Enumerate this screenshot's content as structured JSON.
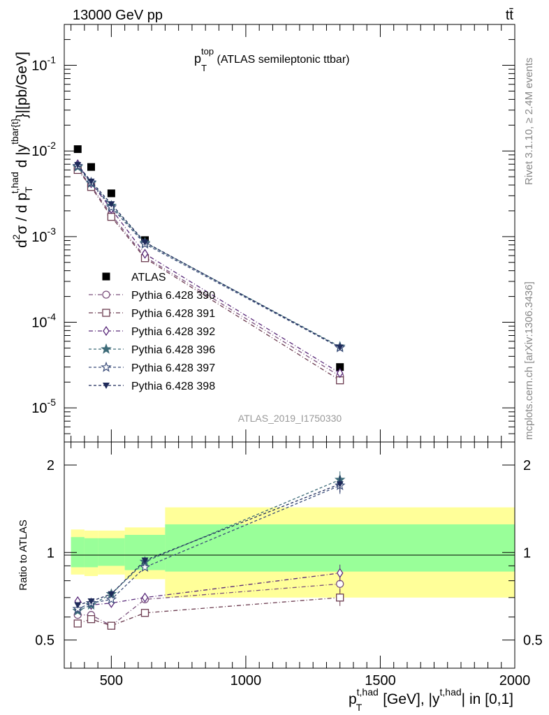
{
  "header": {
    "left": "13000 GeV pp",
    "right": "tt̄"
  },
  "side_labels": {
    "rivet": "Rivet 3.1.10, ≥ 2.4M events",
    "mcplots": "mcplots.cern.ch [arXiv:1306.3436]"
  },
  "main_panel": {
    "title_main": "p",
    "title_sup": "top",
    "title_sub": "T",
    "title_rest": " (ATLAS semileptonic ttbar)",
    "ylabel": "d²σ / d p_T^{t,had} d |y^{tbar{t}}|[pb/GeV]",
    "ylabel_parts": {
      "d1": "d",
      "sup2": "2",
      "sigma": "σ / d p",
      "subT": "T",
      "supthad": "t,had",
      "mid": " d |y",
      "suptbar": "tbar{t}",
      "end": "}|[pb/GeV]"
    },
    "watermark": "ATLAS_2019_I1750330"
  },
  "ratio_panel": {
    "ylabel": "Ratio to ATLAS"
  },
  "xaxis": {
    "label_p": "p",
    "label_sup": "t,had",
    "label_sub": "T",
    "label_mid": " [GeV], |y",
    "label_sup2": "t,had",
    "label_end": "| in [0,1]"
  },
  "chart_data": [
    {
      "type": "scatter",
      "panel": "main",
      "title": "p_T^top (ATLAS semileptonic ttbar)",
      "xlabel": "p_T^{t,had} [GeV], |y^{t,had}| in [0,1]",
      "ylabel": "d²σ / d p_T^{t,had} d |y^{tbar{t}}|[pb/GeV]",
      "yscale": "log",
      "xlim": [
        325,
        2000
      ],
      "ylim": [
        4e-06,
        0.3
      ],
      "x_ticks": [
        500,
        1000,
        1500,
        2000
      ],
      "y_ticks": [
        {
          "value": 0.1,
          "base": "10",
          "exp": "-1"
        },
        {
          "value": 0.01,
          "base": "10",
          "exp": "-2"
        },
        {
          "value": 0.001,
          "base": "10",
          "exp": "-3"
        },
        {
          "value": 0.0001,
          "base": "10",
          "exp": "-4"
        },
        {
          "value": 1e-05,
          "base": "10",
          "exp": "-5"
        }
      ],
      "legend_position": "middle-left",
      "x": [
        375,
        425,
        500,
        625,
        1350
      ],
      "series": [
        {
          "name": "ATLAS",
          "marker": "filled-square",
          "color": "#000000",
          "dash": "",
          "values": [
            0.0105,
            0.0065,
            0.0032,
            0.00091,
            3e-05
          ]
        },
        {
          "name": "Pythia 6.428 390",
          "marker": "open-circle",
          "color": "#7a4f7c",
          "dash": "6,3,1,3",
          "values": [
            0.0062,
            0.0039,
            0.0018,
            0.00058,
            2.35e-05
          ]
        },
        {
          "name": "Pythia 6.428 391",
          "marker": "open-square",
          "color": "#6b3b4f",
          "dash": "6,3,1,3",
          "values": [
            0.006,
            0.0038,
            0.0017,
            0.00056,
            2.1e-05
          ]
        },
        {
          "name": "Pythia 6.428 392",
          "marker": "open-diamond",
          "color": "#5a2a7a",
          "dash": "6,3,1,3",
          "values": [
            0.007,
            0.0042,
            0.0021,
            0.00063,
            2.55e-05
          ]
        },
        {
          "name": "Pythia 6.428 396",
          "marker": "filled-star",
          "color": "#3d6b78",
          "dash": "4,3",
          "values": [
            0.0065,
            0.0042,
            0.0023,
            0.00085,
            5.2e-05
          ]
        },
        {
          "name": "Pythia 6.428 397",
          "marker": "open-star",
          "color": "#3b4d7a",
          "dash": "4,3",
          "values": [
            0.0067,
            0.0043,
            0.0022,
            0.00082,
            5.05e-05
          ]
        },
        {
          "name": "Pythia 6.428 398",
          "marker": "filled-triangle-down",
          "color": "#1e2a5a",
          "dash": "4,3",
          "values": [
            0.0069,
            0.0044,
            0.0024,
            0.00086,
            5.1e-05
          ]
        }
      ]
    },
    {
      "type": "scatter",
      "panel": "ratio",
      "ylabel": "Ratio to ATLAS",
      "yscale": "log",
      "xlim": [
        325,
        2000
      ],
      "ylim": [
        0.4,
        2.4
      ],
      "y_ticks": [
        {
          "value": 0.5,
          "label": "0.5"
        },
        {
          "value": 1,
          "label": "1"
        },
        {
          "value": 2,
          "label": "2"
        }
      ],
      "uncertainty_bands": {
        "bins": [
          [
            350,
            400
          ],
          [
            400,
            450
          ],
          [
            450,
            550
          ],
          [
            550,
            700
          ],
          [
            700,
            2000
          ]
        ],
        "inner": [
          [
            0.89,
            1.13
          ],
          [
            0.89,
            1.12
          ],
          [
            0.9,
            1.12
          ],
          [
            0.87,
            1.15
          ],
          [
            0.86,
            1.25
          ]
        ],
        "outer": [
          [
            0.84,
            1.2
          ],
          [
            0.83,
            1.19
          ],
          [
            0.84,
            1.19
          ],
          [
            0.81,
            1.22
          ],
          [
            0.7,
            1.43
          ]
        ]
      },
      "x": [
        375,
        425,
        500,
        625,
        1350
      ],
      "series": [
        {
          "name": "Pythia 6.428 390",
          "values": [
            0.61,
            0.61,
            0.56,
            0.69,
            0.78
          ]
        },
        {
          "name": "Pythia 6.428 391",
          "values": [
            0.57,
            0.59,
            0.56,
            0.62,
            0.7
          ]
        },
        {
          "name": "Pythia 6.428 392",
          "values": [
            0.68,
            0.66,
            0.67,
            0.7,
            0.85
          ]
        },
        {
          "name": "Pythia 6.428 396",
          "values": [
            0.63,
            0.66,
            0.72,
            0.93,
            1.78
          ]
        },
        {
          "name": "Pythia 6.428 397",
          "values": [
            0.64,
            0.67,
            0.69,
            0.89,
            1.7
          ]
        },
        {
          "name": "Pythia 6.428 398",
          "values": [
            0.66,
            0.68,
            0.72,
            0.94,
            1.72
          ]
        }
      ]
    }
  ]
}
